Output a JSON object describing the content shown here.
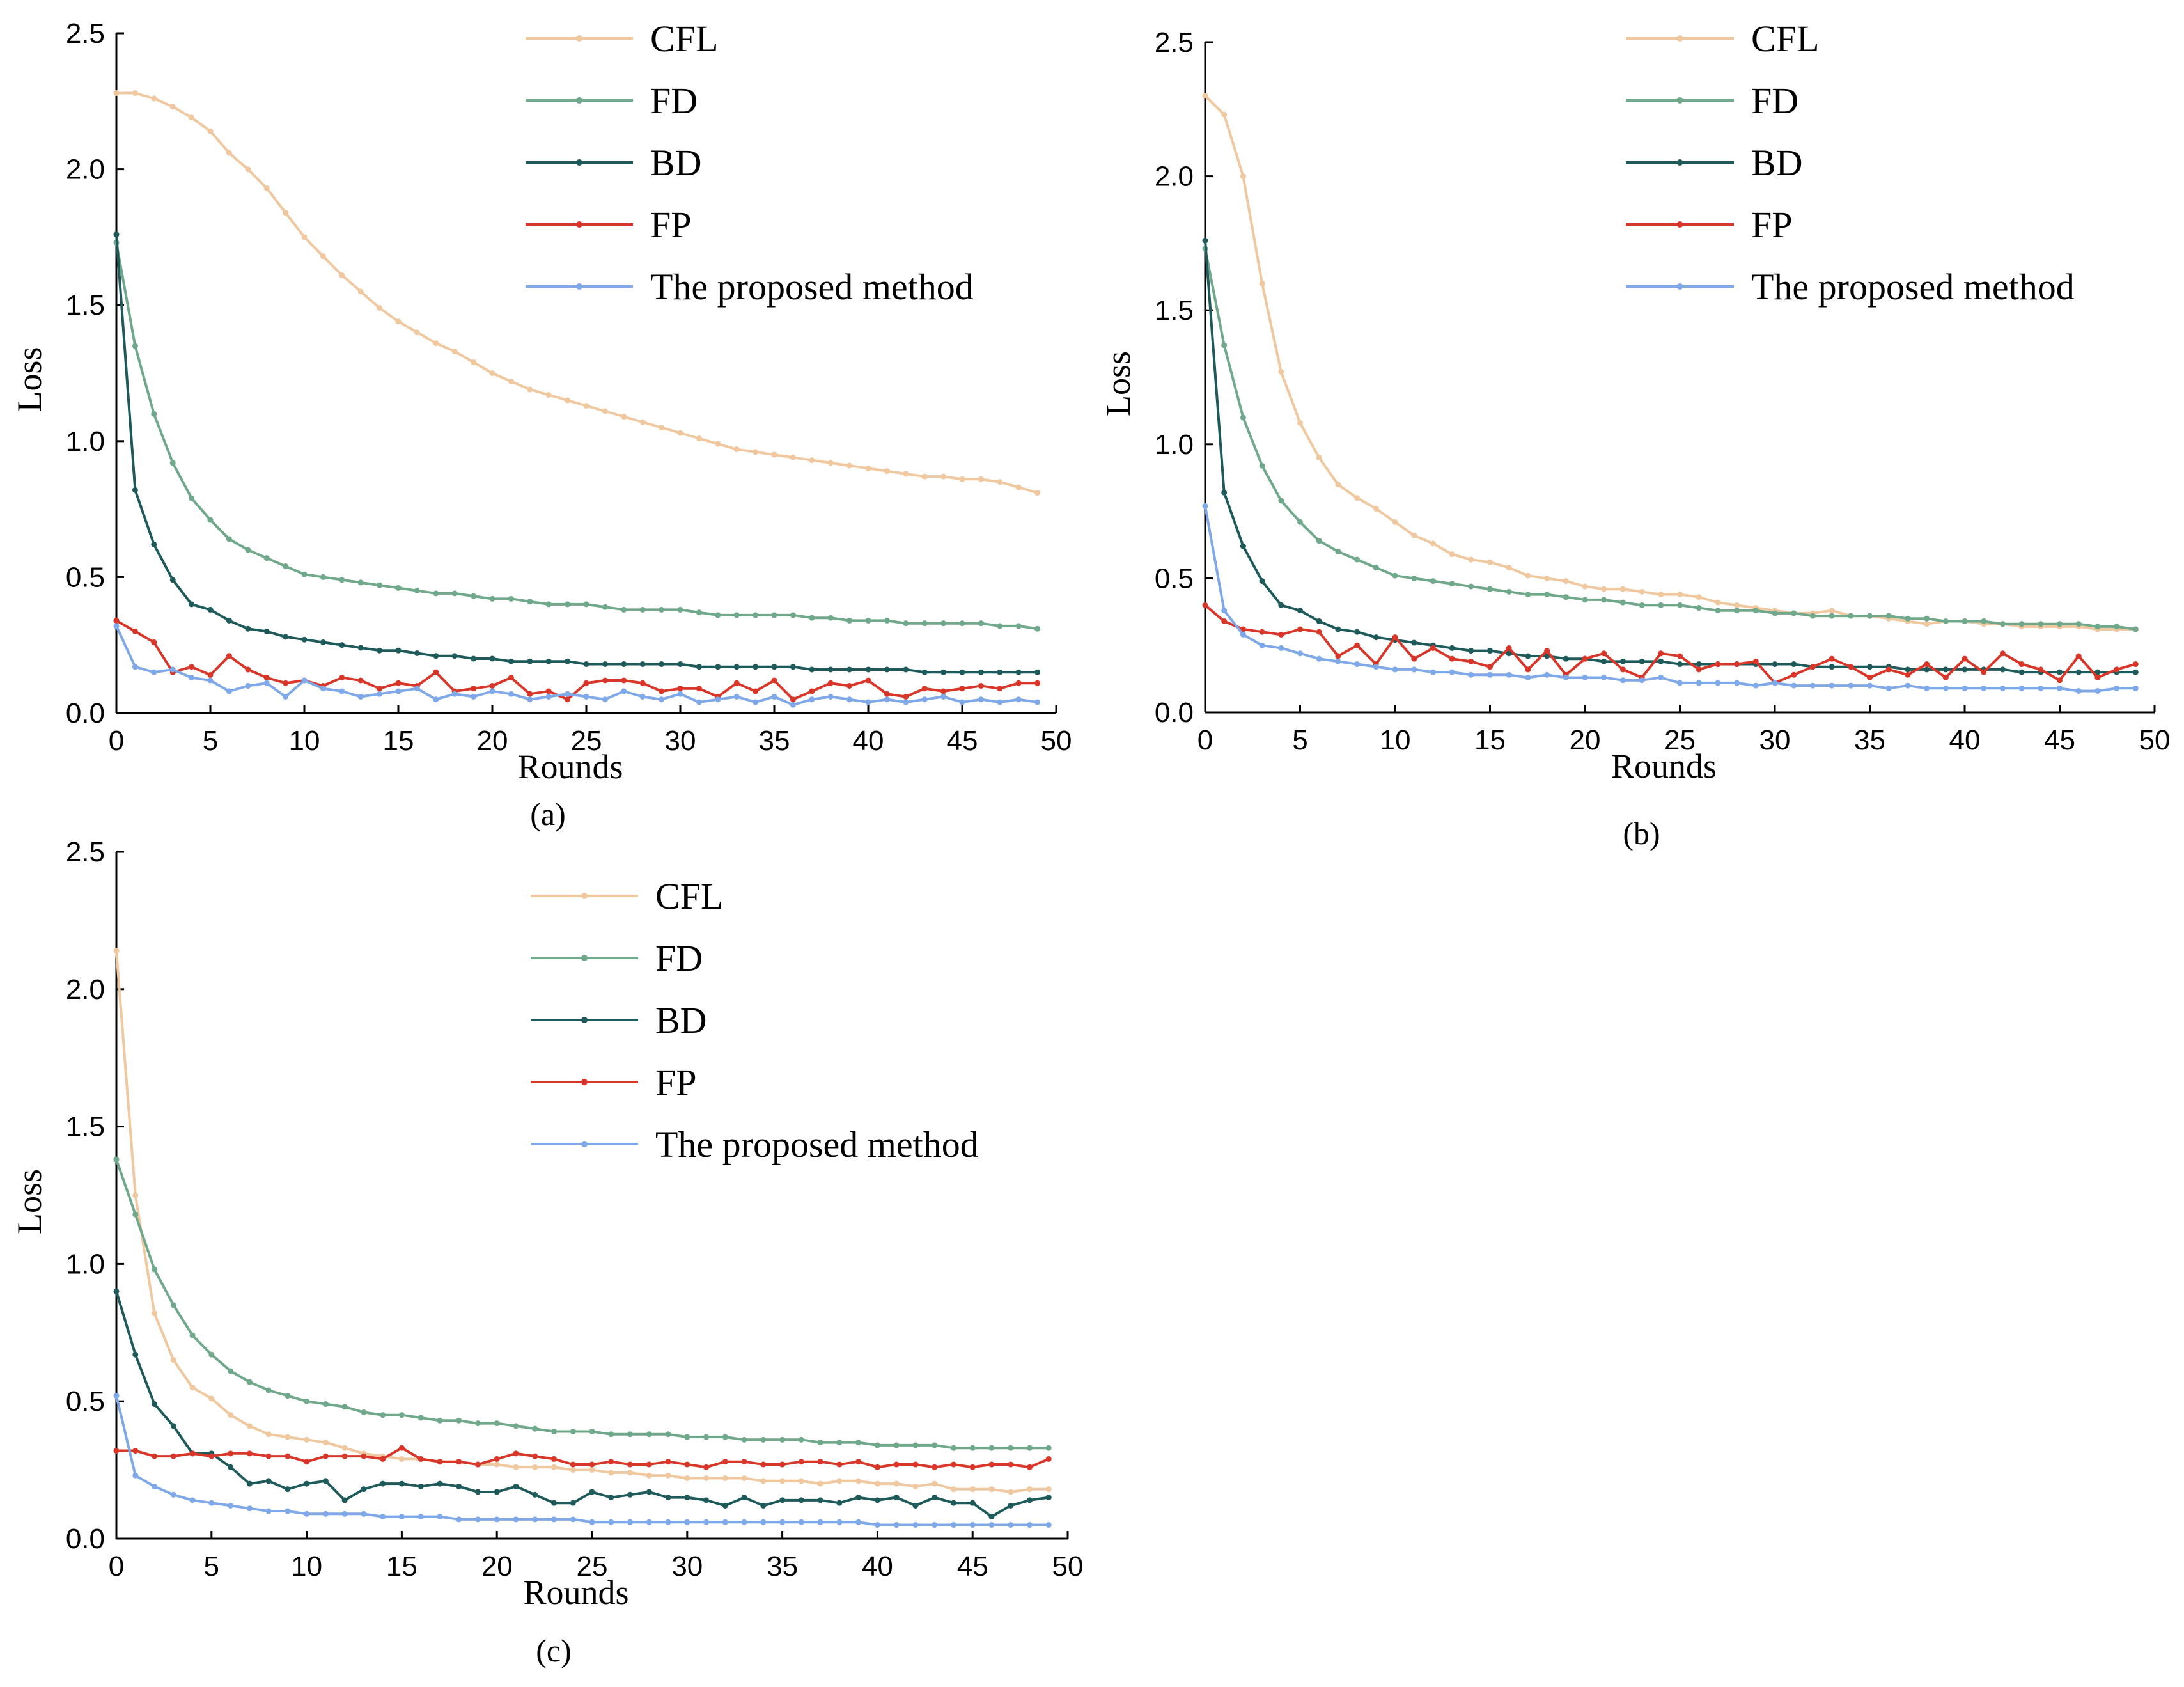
{
  "chart_data": [
    {
      "type": "line",
      "id": "a",
      "caption": "(a)",
      "xlabel": "Rounds",
      "ylabel": "Loss",
      "xlim": [
        0,
        50
      ],
      "ylim": [
        0,
        2.5
      ],
      "xticks": [
        "0",
        "5",
        "10",
        "15",
        "20",
        "25",
        "30",
        "35",
        "40",
        "45",
        "50"
      ],
      "yticks": [
        "0.0",
        "0.5",
        "1.0",
        "1.5",
        "2.0",
        "2.5"
      ],
      "legend": "top-right",
      "series": [
        {
          "name": "CFL",
          "color": "#F0C8A0",
          "values": [
            2.28,
            2.28,
            2.26,
            2.23,
            2.19,
            2.14,
            2.06,
            2.0,
            1.93,
            1.84,
            1.75,
            1.68,
            1.61,
            1.55,
            1.49,
            1.44,
            1.4,
            1.36,
            1.33,
            1.29,
            1.25,
            1.22,
            1.19,
            1.17,
            1.15,
            1.13,
            1.11,
            1.09,
            1.07,
            1.05,
            1.03,
            1.01,
            0.99,
            0.97,
            0.96,
            0.95,
            0.94,
            0.93,
            0.92,
            0.91,
            0.9,
            0.89,
            0.88,
            0.87,
            0.87,
            0.86,
            0.86,
            0.85,
            0.83,
            0.81
          ]
        },
        {
          "name": "FD",
          "color": "#6FA88A",
          "values": [
            1.73,
            1.35,
            1.1,
            0.92,
            0.79,
            0.71,
            0.64,
            0.6,
            0.57,
            0.54,
            0.51,
            0.5,
            0.49,
            0.48,
            0.47,
            0.46,
            0.45,
            0.44,
            0.44,
            0.43,
            0.42,
            0.42,
            0.41,
            0.4,
            0.4,
            0.4,
            0.39,
            0.38,
            0.38,
            0.38,
            0.38,
            0.37,
            0.36,
            0.36,
            0.36,
            0.36,
            0.36,
            0.35,
            0.35,
            0.34,
            0.34,
            0.34,
            0.33,
            0.33,
            0.33,
            0.33,
            0.33,
            0.32,
            0.32,
            0.31
          ]
        },
        {
          "name": "BD",
          "color": "#1E5A5A",
          "values": [
            1.76,
            0.82,
            0.62,
            0.49,
            0.4,
            0.38,
            0.34,
            0.31,
            0.3,
            0.28,
            0.27,
            0.26,
            0.25,
            0.24,
            0.23,
            0.23,
            0.22,
            0.21,
            0.21,
            0.2,
            0.2,
            0.19,
            0.19,
            0.19,
            0.19,
            0.18,
            0.18,
            0.18,
            0.18,
            0.18,
            0.18,
            0.17,
            0.17,
            0.17,
            0.17,
            0.17,
            0.17,
            0.16,
            0.16,
            0.16,
            0.16,
            0.16,
            0.16,
            0.15,
            0.15,
            0.15,
            0.15,
            0.15,
            0.15,
            0.15
          ]
        },
        {
          "name": "FP",
          "color": "#D9362A",
          "values": [
            0.34,
            0.3,
            0.26,
            0.15,
            0.17,
            0.14,
            0.21,
            0.16,
            0.13,
            0.11,
            0.12,
            0.1,
            0.13,
            0.12,
            0.09,
            0.11,
            0.1,
            0.15,
            0.08,
            0.09,
            0.1,
            0.13,
            0.07,
            0.08,
            0.05,
            0.11,
            0.12,
            0.12,
            0.11,
            0.08,
            0.09,
            0.09,
            0.06,
            0.11,
            0.08,
            0.12,
            0.05,
            0.08,
            0.11,
            0.1,
            0.12,
            0.07,
            0.06,
            0.09,
            0.08,
            0.09,
            0.1,
            0.09,
            0.11,
            0.11
          ]
        },
        {
          "name": "The proposed method",
          "color": "#7FA8E8",
          "values": [
            0.32,
            0.17,
            0.15,
            0.16,
            0.13,
            0.12,
            0.08,
            0.1,
            0.11,
            0.06,
            0.12,
            0.09,
            0.08,
            0.06,
            0.07,
            0.08,
            0.09,
            0.05,
            0.07,
            0.06,
            0.08,
            0.07,
            0.05,
            0.06,
            0.07,
            0.06,
            0.05,
            0.08,
            0.06,
            0.05,
            0.07,
            0.04,
            0.05,
            0.06,
            0.04,
            0.06,
            0.03,
            0.05,
            0.06,
            0.05,
            0.04,
            0.05,
            0.04,
            0.05,
            0.06,
            0.04,
            0.05,
            0.04,
            0.05,
            0.04
          ]
        }
      ]
    },
    {
      "type": "line",
      "id": "b",
      "caption": "(b)",
      "xlabel": "Rounds",
      "ylabel": "Loss",
      "xlim": [
        0,
        50
      ],
      "ylim": [
        0,
        2.5
      ],
      "xticks": [
        "0",
        "5",
        "10",
        "15",
        "20",
        "25",
        "30",
        "35",
        "40",
        "45",
        "50"
      ],
      "yticks": [
        "0.0",
        "0.5",
        "1.0",
        "1.5",
        "2.0",
        "2.5"
      ],
      "legend": "top-right",
      "series": [
        {
          "name": "CFL",
          "color": "#F0C8A0",
          "values": [
            2.3,
            2.23,
            2.0,
            1.6,
            1.27,
            1.08,
            0.95,
            0.85,
            0.8,
            0.76,
            0.71,
            0.66,
            0.63,
            0.59,
            0.57,
            0.56,
            0.54,
            0.51,
            0.5,
            0.49,
            0.47,
            0.46,
            0.46,
            0.45,
            0.44,
            0.44,
            0.43,
            0.41,
            0.4,
            0.39,
            0.38,
            0.37,
            0.37,
            0.38,
            0.36,
            0.36,
            0.35,
            0.34,
            0.33,
            0.34,
            0.34,
            0.33,
            0.33,
            0.32,
            0.32,
            0.32,
            0.32,
            0.31,
            0.31,
            0.31
          ]
        },
        {
          "name": "FD",
          "color": "#6FA88A",
          "values": [
            1.73,
            1.37,
            1.1,
            0.92,
            0.79,
            0.71,
            0.64,
            0.6,
            0.57,
            0.54,
            0.51,
            0.5,
            0.49,
            0.48,
            0.47,
            0.46,
            0.45,
            0.44,
            0.44,
            0.43,
            0.42,
            0.42,
            0.41,
            0.4,
            0.4,
            0.4,
            0.39,
            0.38,
            0.38,
            0.38,
            0.37,
            0.37,
            0.36,
            0.36,
            0.36,
            0.36,
            0.36,
            0.35,
            0.35,
            0.34,
            0.34,
            0.34,
            0.33,
            0.33,
            0.33,
            0.33,
            0.33,
            0.32,
            0.32,
            0.31
          ]
        },
        {
          "name": "BD",
          "color": "#1E5A5A",
          "values": [
            1.76,
            0.82,
            0.62,
            0.49,
            0.4,
            0.38,
            0.34,
            0.31,
            0.3,
            0.28,
            0.27,
            0.26,
            0.25,
            0.24,
            0.23,
            0.23,
            0.22,
            0.21,
            0.21,
            0.2,
            0.2,
            0.19,
            0.19,
            0.19,
            0.19,
            0.18,
            0.18,
            0.18,
            0.18,
            0.18,
            0.18,
            0.18,
            0.17,
            0.17,
            0.17,
            0.17,
            0.17,
            0.16,
            0.16,
            0.16,
            0.16,
            0.16,
            0.16,
            0.15,
            0.15,
            0.15,
            0.15,
            0.15,
            0.15,
            0.15
          ]
        },
        {
          "name": "FP",
          "color": "#D9362A",
          "values": [
            0.4,
            0.34,
            0.31,
            0.3,
            0.29,
            0.31,
            0.3,
            0.21,
            0.25,
            0.18,
            0.28,
            0.2,
            0.24,
            0.2,
            0.19,
            0.17,
            0.24,
            0.16,
            0.23,
            0.14,
            0.2,
            0.22,
            0.16,
            0.13,
            0.22,
            0.21,
            0.16,
            0.18,
            0.18,
            0.19,
            0.11,
            0.14,
            0.17,
            0.2,
            0.17,
            0.13,
            0.16,
            0.14,
            0.18,
            0.13,
            0.2,
            0.15,
            0.22,
            0.18,
            0.16,
            0.12,
            0.21,
            0.13,
            0.16,
            0.18
          ]
        },
        {
          "name": "The proposed method",
          "color": "#7FA8E8",
          "values": [
            0.77,
            0.38,
            0.29,
            0.25,
            0.24,
            0.22,
            0.2,
            0.19,
            0.18,
            0.17,
            0.16,
            0.16,
            0.15,
            0.15,
            0.14,
            0.14,
            0.14,
            0.13,
            0.14,
            0.13,
            0.13,
            0.13,
            0.12,
            0.12,
            0.13,
            0.11,
            0.11,
            0.11,
            0.11,
            0.1,
            0.11,
            0.1,
            0.1,
            0.1,
            0.1,
            0.1,
            0.09,
            0.1,
            0.09,
            0.09,
            0.09,
            0.09,
            0.09,
            0.09,
            0.09,
            0.09,
            0.08,
            0.08,
            0.09,
            0.09
          ]
        }
      ]
    },
    {
      "type": "line",
      "id": "c",
      "caption": "(c)",
      "xlabel": "Rounds",
      "ylabel": "Loss",
      "xlim": [
        0,
        50
      ],
      "ylim": [
        0,
        2.5
      ],
      "xticks": [
        "0",
        "5",
        "10",
        "15",
        "20",
        "25",
        "30",
        "35",
        "40",
        "45",
        "50"
      ],
      "yticks": [
        "0.0",
        "0.5",
        "1.0",
        "1.5",
        "2.0",
        "2.5"
      ],
      "legend": "top-right",
      "series": [
        {
          "name": "CFL",
          "color": "#F0C8A0",
          "values": [
            2.14,
            1.25,
            0.82,
            0.65,
            0.55,
            0.51,
            0.45,
            0.41,
            0.38,
            0.37,
            0.36,
            0.35,
            0.33,
            0.31,
            0.3,
            0.29,
            0.29,
            0.28,
            0.28,
            0.27,
            0.27,
            0.26,
            0.26,
            0.26,
            0.25,
            0.25,
            0.24,
            0.24,
            0.23,
            0.23,
            0.22,
            0.22,
            0.22,
            0.22,
            0.21,
            0.21,
            0.21,
            0.2,
            0.21,
            0.21,
            0.2,
            0.2,
            0.19,
            0.2,
            0.18,
            0.18,
            0.18,
            0.17,
            0.18,
            0.18
          ]
        },
        {
          "name": "FD",
          "color": "#6FA88A",
          "values": [
            1.38,
            1.18,
            0.98,
            0.85,
            0.74,
            0.67,
            0.61,
            0.57,
            0.54,
            0.52,
            0.5,
            0.49,
            0.48,
            0.46,
            0.45,
            0.45,
            0.44,
            0.43,
            0.43,
            0.42,
            0.42,
            0.41,
            0.4,
            0.39,
            0.39,
            0.39,
            0.38,
            0.38,
            0.38,
            0.38,
            0.37,
            0.37,
            0.37,
            0.36,
            0.36,
            0.36,
            0.36,
            0.35,
            0.35,
            0.35,
            0.34,
            0.34,
            0.34,
            0.34,
            0.33,
            0.33,
            0.33,
            0.33,
            0.33,
            0.33
          ]
        },
        {
          "name": "BD",
          "color": "#1E5A5A",
          "values": [
            0.9,
            0.67,
            0.49,
            0.41,
            0.31,
            0.31,
            0.26,
            0.2,
            0.21,
            0.18,
            0.2,
            0.21,
            0.14,
            0.18,
            0.2,
            0.2,
            0.19,
            0.2,
            0.19,
            0.17,
            0.17,
            0.19,
            0.16,
            0.13,
            0.13,
            0.17,
            0.15,
            0.16,
            0.17,
            0.15,
            0.15,
            0.14,
            0.12,
            0.15,
            0.12,
            0.14,
            0.14,
            0.14,
            0.13,
            0.15,
            0.14,
            0.15,
            0.12,
            0.15,
            0.13,
            0.13,
            0.08,
            0.12,
            0.14,
            0.15
          ]
        },
        {
          "name": "FP",
          "color": "#D9362A",
          "values": [
            0.32,
            0.32,
            0.3,
            0.3,
            0.31,
            0.3,
            0.31,
            0.31,
            0.3,
            0.3,
            0.28,
            0.3,
            0.3,
            0.3,
            0.29,
            0.33,
            0.29,
            0.28,
            0.28,
            0.27,
            0.29,
            0.31,
            0.3,
            0.29,
            0.27,
            0.27,
            0.28,
            0.27,
            0.27,
            0.28,
            0.27,
            0.26,
            0.28,
            0.28,
            0.27,
            0.27,
            0.28,
            0.28,
            0.27,
            0.28,
            0.26,
            0.27,
            0.27,
            0.26,
            0.27,
            0.26,
            0.27,
            0.27,
            0.26,
            0.29
          ]
        },
        {
          "name": "The proposed method",
          "color": "#7FA8E8",
          "values": [
            0.52,
            0.23,
            0.19,
            0.16,
            0.14,
            0.13,
            0.12,
            0.11,
            0.1,
            0.1,
            0.09,
            0.09,
            0.09,
            0.09,
            0.08,
            0.08,
            0.08,
            0.08,
            0.07,
            0.07,
            0.07,
            0.07,
            0.07,
            0.07,
            0.07,
            0.06,
            0.06,
            0.06,
            0.06,
            0.06,
            0.06,
            0.06,
            0.06,
            0.06,
            0.06,
            0.06,
            0.06,
            0.06,
            0.06,
            0.06,
            0.05,
            0.05,
            0.05,
            0.05,
            0.05,
            0.05,
            0.05,
            0.05,
            0.05,
            0.05
          ]
        }
      ]
    }
  ]
}
